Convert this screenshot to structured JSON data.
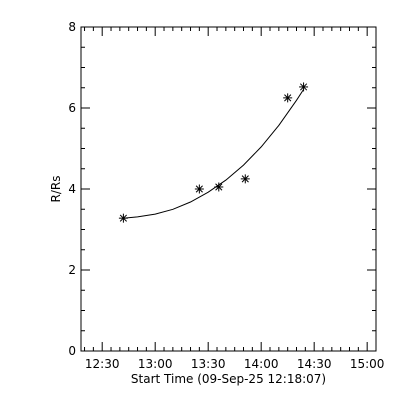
{
  "chart_data": {
    "type": "scatter",
    "title": "",
    "xlabel": "Start Time (09-Sep-25 12:18:07)",
    "ylabel": "R/Rs",
    "x_ticks": [
      "12:30",
      "13:00",
      "13:30",
      "14:00",
      "14:30",
      "15:00"
    ],
    "y_ticks": [
      "0",
      "2",
      "4",
      "6",
      "8"
    ],
    "xlim": [
      "12:18",
      "15:05"
    ],
    "ylim": [
      0,
      8
    ],
    "grid": false,
    "marker": "asterisk",
    "points": [
      {
        "x": "12:42",
        "y": 3.28
      },
      {
        "x": "13:25",
        "y": 4.0
      },
      {
        "x": "13:36",
        "y": 4.05
      },
      {
        "x": "13:51",
        "y": 4.25
      },
      {
        "x": "14:15",
        "y": 6.25
      },
      {
        "x": "14:24",
        "y": 6.52
      }
    ],
    "fit_curve": {
      "x": [
        "12:42",
        "12:50",
        "13:00",
        "13:10",
        "13:20",
        "13:30",
        "13:40",
        "13:50",
        "14:00",
        "14:10",
        "14:20",
        "14:24"
      ],
      "y": [
        3.28,
        3.31,
        3.38,
        3.5,
        3.68,
        3.92,
        4.22,
        4.59,
        5.04,
        5.57,
        6.19,
        6.46
      ]
    }
  }
}
